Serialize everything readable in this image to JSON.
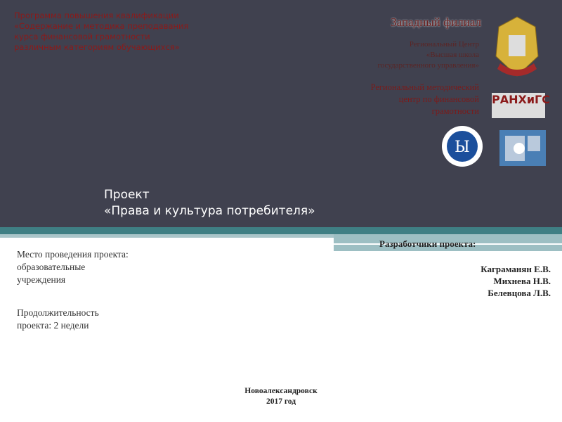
{
  "program": {
    "lines": [
      "Программа повышения квалификации",
      "«Содержание и методика преподавания",
      "курса финансовой грамотности",
      "различным категориям обучающихся»"
    ]
  },
  "branch": {
    "title": "Западный филиал",
    "center_lines": [
      "Региональный Центр",
      "«Высшая школа",
      "государственного управления»"
    ],
    "method_lines": [
      "Региональный методический",
      "центр по финансовой",
      "грамотности"
    ]
  },
  "logos": {
    "ranepa_text": "РАНХиГС",
    "ranepa_emblem_text": "РАНХиГС"
  },
  "project": {
    "line1": "Проект",
    "line2": "«Права и культура потребителя»"
  },
  "venue": {
    "lines": [
      "Место проведения проекта:",
      "образовательные",
      "учреждения"
    ]
  },
  "duration": {
    "lines": [
      "Продолжительность",
      "проекта:  2 недели"
    ]
  },
  "developers": {
    "heading": "Разработчики проекта:",
    "names": [
      "Каграманян Е.В.",
      "Михнева Н.В.",
      "Белевцова Л.В."
    ]
  },
  "footer": {
    "city": "Новоалександровск",
    "year": "2017 год"
  },
  "colors": {
    "background": "#40414f",
    "accent_red": "#8b1a1a",
    "teal": "#3f7f84"
  }
}
